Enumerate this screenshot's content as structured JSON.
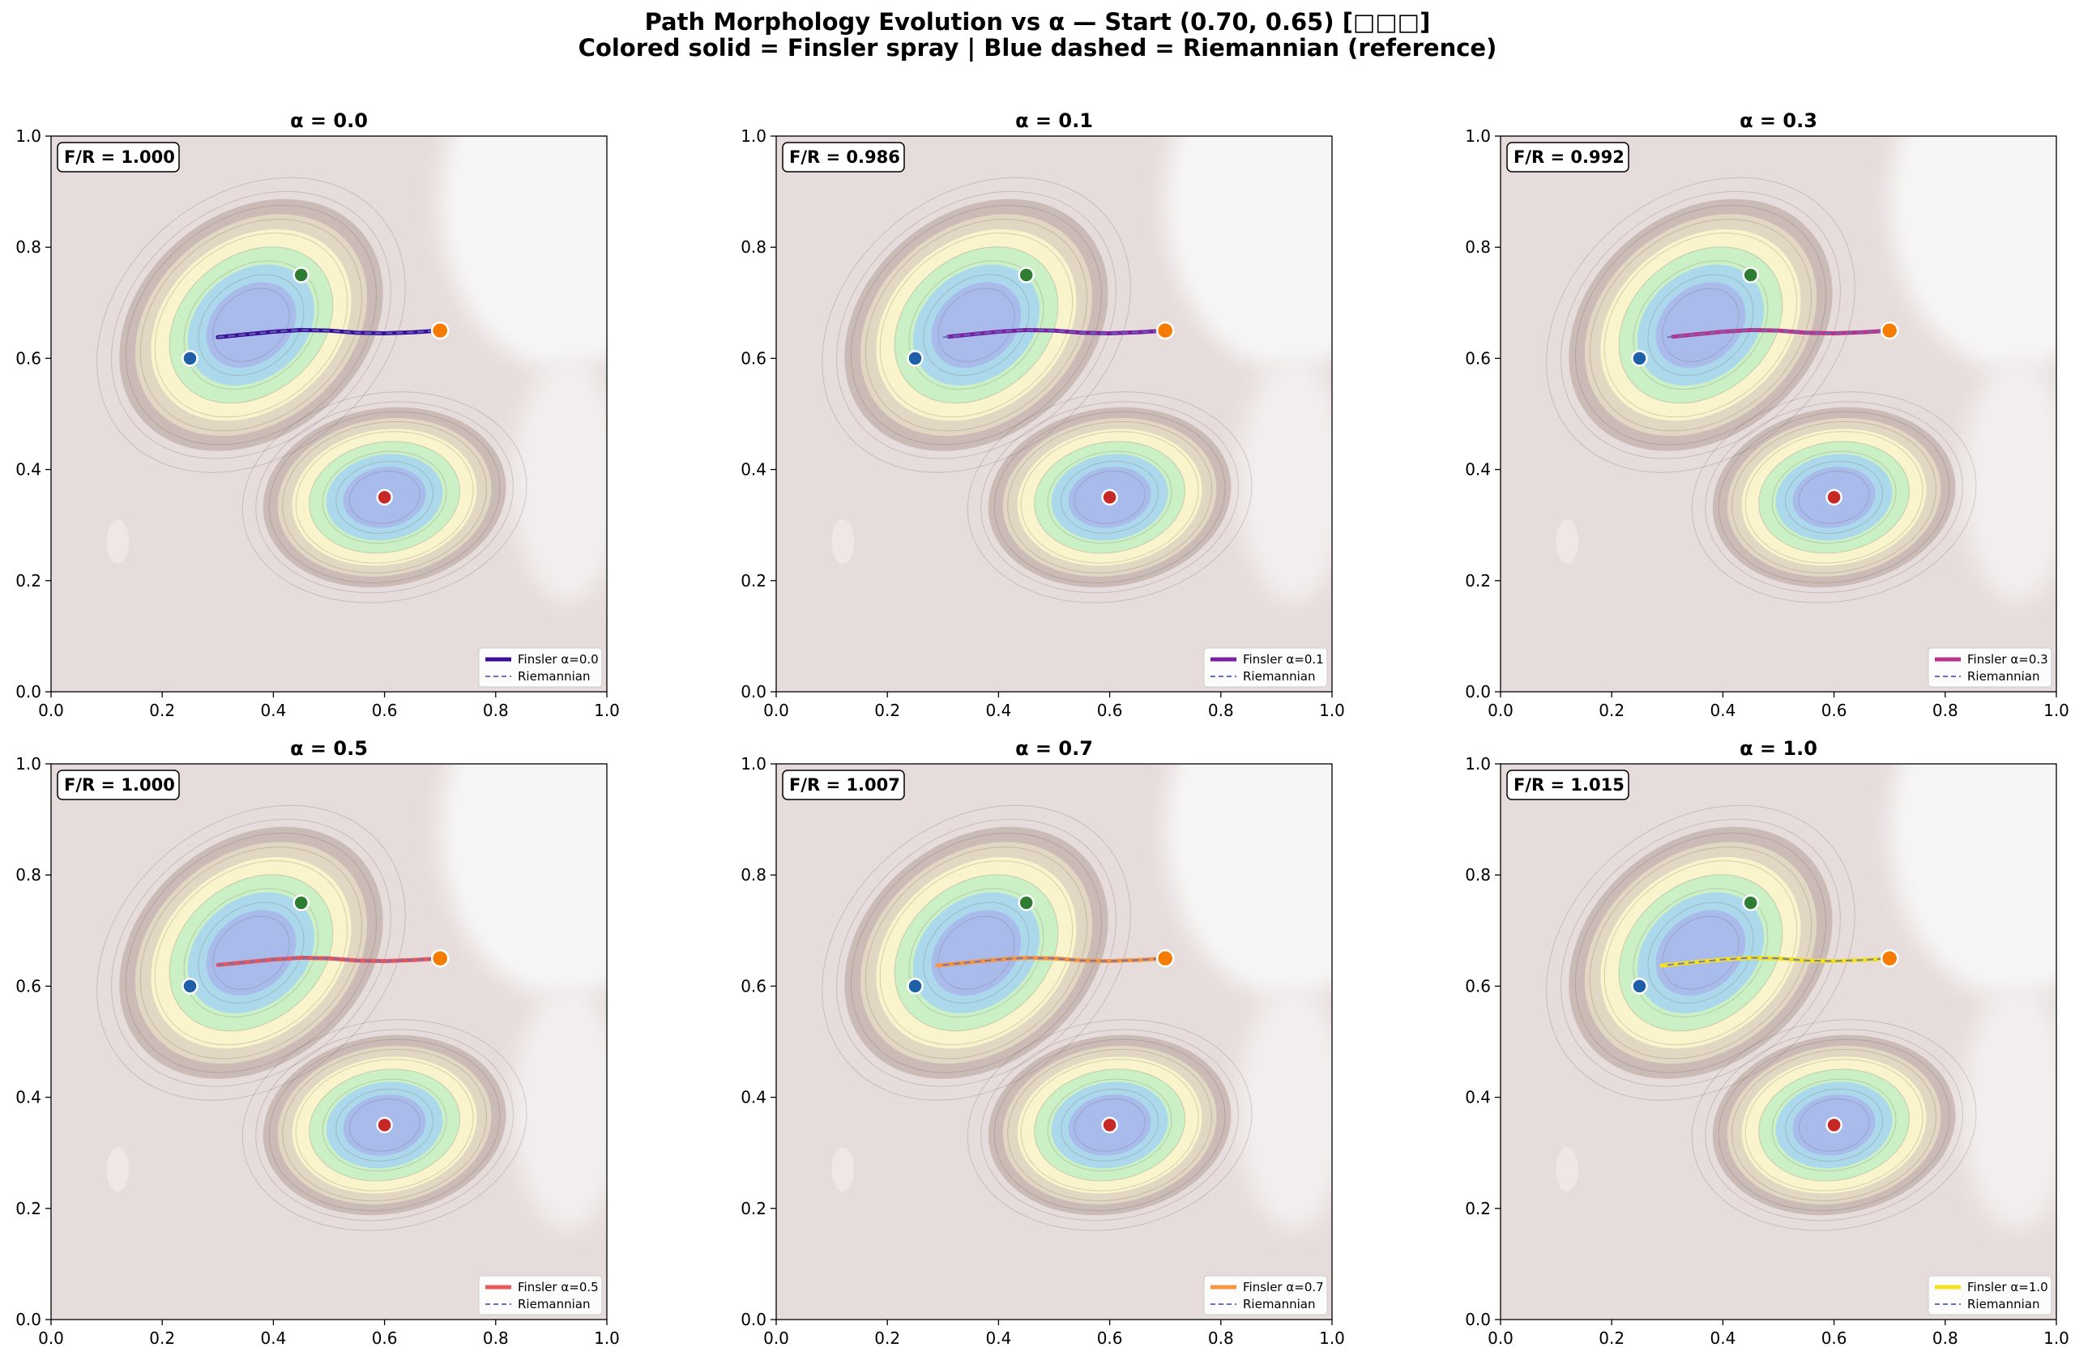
{
  "figure": {
    "title_line1": "Path Morphology Evolution vs α — Start (0.70, 0.65) [□□□]",
    "title_line2": "Colored solid = Finsler spray | Blue dashed = Riemannian (reference)"
  },
  "chart_data": [
    {
      "type": "contour+line",
      "title": "α = 0.0",
      "xlim": [
        0,
        1
      ],
      "ylim": [
        0,
        1
      ],
      "ticks": [
        "0.0",
        "0.2",
        "0.4",
        "0.6",
        "0.8",
        "1.0"
      ],
      "annotation": "F/R = 1.000",
      "finsler_color": "#3b0f9a",
      "legend": [
        "Finsler α=0.0",
        "Riemannian"
      ],
      "series": [
        {
          "name": "Finsler α=0.0",
          "style": "solid",
          "x": [
            0.3,
            0.35,
            0.4,
            0.45,
            0.5,
            0.55,
            0.6,
            0.65,
            0.7
          ],
          "y": [
            0.638,
            0.643,
            0.648,
            0.651,
            0.65,
            0.646,
            0.645,
            0.647,
            0.65
          ]
        },
        {
          "name": "Riemannian",
          "style": "dashed",
          "x": [
            0.3,
            0.35,
            0.4,
            0.45,
            0.5,
            0.55,
            0.6,
            0.65,
            0.7
          ],
          "y": [
            0.638,
            0.643,
            0.648,
            0.651,
            0.65,
            0.646,
            0.645,
            0.647,
            0.65
          ]
        }
      ],
      "markers": [
        {
          "name": "start",
          "x": 0.7,
          "y": 0.65,
          "color": "#f57c00"
        },
        {
          "name": "well-green",
          "x": 0.45,
          "y": 0.75,
          "color": "#2e7d32"
        },
        {
          "name": "well-blue",
          "x": 0.25,
          "y": 0.6,
          "color": "#1f5fa8"
        },
        {
          "name": "well-red",
          "x": 0.6,
          "y": 0.35,
          "color": "#c62828"
        }
      ]
    },
    {
      "type": "contour+line",
      "title": "α = 0.1",
      "xlim": [
        0,
        1
      ],
      "ylim": [
        0,
        1
      ],
      "ticks": [
        "0.0",
        "0.2",
        "0.4",
        "0.6",
        "0.8",
        "1.0"
      ],
      "annotation": "F/R = 0.986",
      "finsler_color": "#7b1fa2",
      "legend": [
        "Finsler α=0.1",
        "Riemannian"
      ],
      "series": [
        {
          "name": "Finsler α=0.1",
          "style": "solid",
          "x": [
            0.31,
            0.35,
            0.4,
            0.45,
            0.5,
            0.55,
            0.6,
            0.65,
            0.7
          ],
          "y": [
            0.639,
            0.643,
            0.648,
            0.651,
            0.65,
            0.646,
            0.645,
            0.647,
            0.65
          ]
        },
        {
          "name": "Riemannian",
          "style": "dashed",
          "x": [
            0.3,
            0.35,
            0.4,
            0.45,
            0.5,
            0.55,
            0.6,
            0.65,
            0.7
          ],
          "y": [
            0.638,
            0.643,
            0.648,
            0.651,
            0.65,
            0.646,
            0.645,
            0.647,
            0.65
          ]
        }
      ],
      "markers": [
        {
          "name": "start",
          "x": 0.7,
          "y": 0.65,
          "color": "#f57c00"
        },
        {
          "name": "well-green",
          "x": 0.45,
          "y": 0.75,
          "color": "#2e7d32"
        },
        {
          "name": "well-blue",
          "x": 0.25,
          "y": 0.6,
          "color": "#1f5fa8"
        },
        {
          "name": "well-red",
          "x": 0.6,
          "y": 0.35,
          "color": "#c62828"
        }
      ]
    },
    {
      "type": "contour+line",
      "title": "α = 0.3",
      "xlim": [
        0,
        1
      ],
      "ylim": [
        0,
        1
      ],
      "ticks": [
        "0.0",
        "0.2",
        "0.4",
        "0.6",
        "0.8",
        "1.0"
      ],
      "annotation": "F/R = 0.992",
      "finsler_color": "#b83289",
      "legend": [
        "Finsler α=0.3",
        "Riemannian"
      ],
      "series": [
        {
          "name": "Finsler α=0.3",
          "style": "solid",
          "x": [
            0.31,
            0.35,
            0.4,
            0.45,
            0.5,
            0.55,
            0.6,
            0.65,
            0.7
          ],
          "y": [
            0.639,
            0.643,
            0.648,
            0.651,
            0.65,
            0.646,
            0.645,
            0.647,
            0.65
          ]
        },
        {
          "name": "Riemannian",
          "style": "dashed",
          "x": [
            0.3,
            0.35,
            0.4,
            0.45,
            0.5,
            0.55,
            0.6,
            0.65,
            0.7
          ],
          "y": [
            0.638,
            0.643,
            0.648,
            0.651,
            0.65,
            0.646,
            0.645,
            0.647,
            0.65
          ]
        }
      ],
      "markers": [
        {
          "name": "start",
          "x": 0.7,
          "y": 0.65,
          "color": "#f57c00"
        },
        {
          "name": "well-green",
          "x": 0.45,
          "y": 0.75,
          "color": "#2e7d32"
        },
        {
          "name": "well-blue",
          "x": 0.25,
          "y": 0.6,
          "color": "#1f5fa8"
        },
        {
          "name": "well-red",
          "x": 0.6,
          "y": 0.35,
          "color": "#c62828"
        }
      ]
    },
    {
      "type": "contour+line",
      "title": "α = 0.5",
      "xlim": [
        0,
        1
      ],
      "ylim": [
        0,
        1
      ],
      "ticks": [
        "0.0",
        "0.2",
        "0.4",
        "0.6",
        "0.8",
        "1.0"
      ],
      "annotation": "F/R = 1.000",
      "finsler_color": "#e8575a",
      "legend": [
        "Finsler α=0.5",
        "Riemannian"
      ],
      "series": [
        {
          "name": "Finsler α=0.5",
          "style": "solid",
          "x": [
            0.3,
            0.35,
            0.4,
            0.45,
            0.5,
            0.55,
            0.6,
            0.65,
            0.7
          ],
          "y": [
            0.638,
            0.643,
            0.648,
            0.651,
            0.65,
            0.646,
            0.645,
            0.647,
            0.65
          ]
        },
        {
          "name": "Riemannian",
          "style": "dashed",
          "x": [
            0.3,
            0.35,
            0.4,
            0.45,
            0.5,
            0.55,
            0.6,
            0.65,
            0.7
          ],
          "y": [
            0.638,
            0.643,
            0.648,
            0.651,
            0.65,
            0.646,
            0.645,
            0.647,
            0.65
          ]
        }
      ],
      "markers": [
        {
          "name": "start",
          "x": 0.7,
          "y": 0.65,
          "color": "#f57c00"
        },
        {
          "name": "well-green",
          "x": 0.45,
          "y": 0.75,
          "color": "#2e7d32"
        },
        {
          "name": "well-blue",
          "x": 0.25,
          "y": 0.6,
          "color": "#1f5fa8"
        },
        {
          "name": "well-red",
          "x": 0.6,
          "y": 0.35,
          "color": "#c62828"
        }
      ]
    },
    {
      "type": "contour+line",
      "title": "α = 0.7",
      "xlim": [
        0,
        1
      ],
      "ylim": [
        0,
        1
      ],
      "ticks": [
        "0.0",
        "0.2",
        "0.4",
        "0.6",
        "0.8",
        "1.0"
      ],
      "annotation": "F/R = 1.007",
      "finsler_color": "#f89540",
      "legend": [
        "Finsler α=0.7",
        "Riemannian"
      ],
      "series": [
        {
          "name": "Finsler α=0.7",
          "style": "solid",
          "x": [
            0.29,
            0.35,
            0.4,
            0.45,
            0.5,
            0.55,
            0.6,
            0.65,
            0.7
          ],
          "y": [
            0.637,
            0.643,
            0.648,
            0.651,
            0.65,
            0.646,
            0.645,
            0.647,
            0.65
          ]
        },
        {
          "name": "Riemannian",
          "style": "dashed",
          "x": [
            0.3,
            0.35,
            0.4,
            0.45,
            0.5,
            0.55,
            0.6,
            0.65,
            0.7
          ],
          "y": [
            0.638,
            0.643,
            0.648,
            0.651,
            0.65,
            0.646,
            0.645,
            0.647,
            0.65
          ]
        }
      ],
      "markers": [
        {
          "name": "start",
          "x": 0.7,
          "y": 0.65,
          "color": "#f57c00"
        },
        {
          "name": "well-green",
          "x": 0.45,
          "y": 0.75,
          "color": "#2e7d32"
        },
        {
          "name": "well-blue",
          "x": 0.25,
          "y": 0.6,
          "color": "#1f5fa8"
        },
        {
          "name": "well-red",
          "x": 0.6,
          "y": 0.35,
          "color": "#c62828"
        }
      ]
    },
    {
      "type": "contour+line",
      "title": "α = 1.0",
      "xlim": [
        0,
        1
      ],
      "ylim": [
        0,
        1
      ],
      "ticks": [
        "0.0",
        "0.2",
        "0.4",
        "0.6",
        "0.8",
        "1.0"
      ],
      "annotation": "F/R = 1.015",
      "finsler_color": "#f4e11f",
      "legend": [
        "Finsler α=1.0",
        "Riemannian"
      ],
      "series": [
        {
          "name": "Finsler α=1.0",
          "style": "solid",
          "x": [
            0.29,
            0.35,
            0.4,
            0.45,
            0.5,
            0.55,
            0.6,
            0.65,
            0.7
          ],
          "y": [
            0.637,
            0.643,
            0.648,
            0.651,
            0.65,
            0.646,
            0.645,
            0.647,
            0.65
          ]
        },
        {
          "name": "Riemannian",
          "style": "dashed",
          "x": [
            0.3,
            0.35,
            0.4,
            0.45,
            0.5,
            0.55,
            0.6,
            0.65,
            0.7
          ],
          "y": [
            0.638,
            0.643,
            0.648,
            0.651,
            0.65,
            0.646,
            0.645,
            0.647,
            0.65
          ]
        }
      ],
      "markers": [
        {
          "name": "start",
          "x": 0.7,
          "y": 0.65,
          "color": "#f57c00"
        },
        {
          "name": "well-green",
          "x": 0.45,
          "y": 0.75,
          "color": "#2e7d32"
        },
        {
          "name": "well-blue",
          "x": 0.25,
          "y": 0.6,
          "color": "#1f5fa8"
        },
        {
          "name": "well-red",
          "x": 0.6,
          "y": 0.35,
          "color": "#c62828"
        }
      ]
    }
  ]
}
